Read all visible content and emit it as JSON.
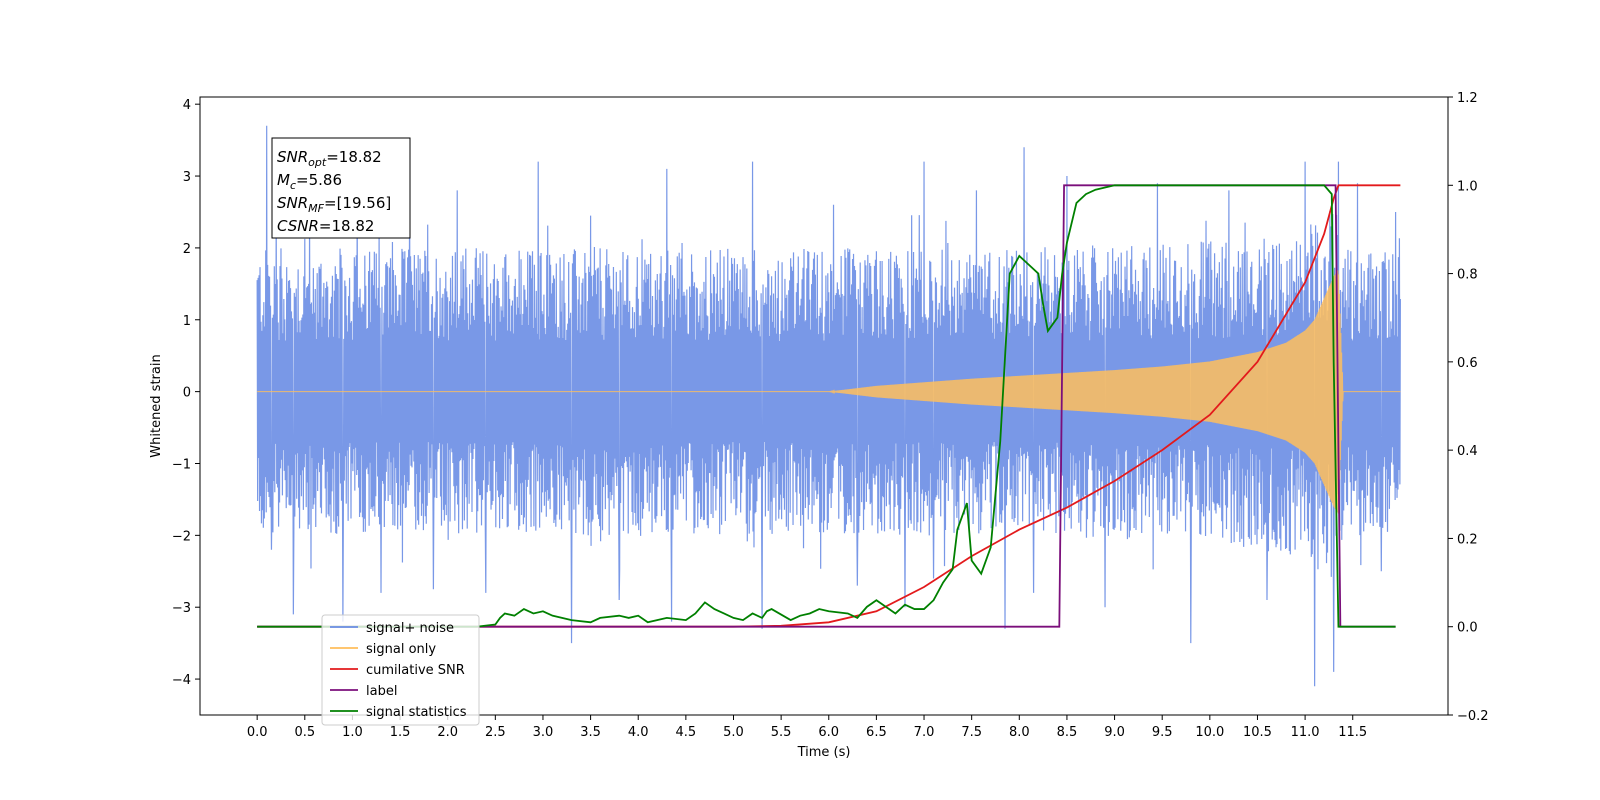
{
  "chart_data": {
    "type": "line",
    "title": "",
    "xlabel": "Time (s)",
    "ylabel": "Whitened strain",
    "xlim": [
      -0.6,
      12.5
    ],
    "ylim": [
      -4.5,
      4.1
    ],
    "y2lim": [
      -0.2,
      1.2
    ],
    "x_ticks": [
      0.0,
      0.5,
      1.0,
      1.5,
      2.0,
      2.5,
      3.0,
      3.5,
      4.0,
      4.5,
      5.0,
      5.5,
      6.0,
      6.5,
      7.0,
      7.5,
      8.0,
      8.5,
      9.0,
      9.5,
      10.0,
      10.5,
      11.0,
      11.5
    ],
    "x_tick_labels": [
      "0.0",
      "0.5",
      "1.0",
      "1.5",
      "2.0",
      "2.5",
      "3.0",
      "3.5",
      "4.0",
      "4.5",
      "5.0",
      "5.5",
      "6.0",
      "6.5",
      "7.0",
      "7.5",
      "8.0",
      "8.5",
      "9.0",
      "9.5",
      "10.0",
      "10.5",
      "11.0",
      "11.5"
    ],
    "y_ticks": [
      -4,
      -3,
      -2,
      -1,
      0,
      1,
      2,
      3,
      4
    ],
    "y_tick_labels": [
      "−4",
      "−3",
      "−2",
      "−1",
      "0",
      "1",
      "2",
      "3",
      "4"
    ],
    "y2_ticks": [
      -0.2,
      0.0,
      0.2,
      0.4,
      0.6,
      0.8,
      1.0,
      1.2
    ],
    "y2_tick_labels": [
      "−0.2",
      "0.0",
      "0.2",
      "0.4",
      "0.6",
      "0.8",
      "1.0",
      "1.2"
    ],
    "grid": false,
    "legend_position": "bottom-left",
    "annotation": {
      "lines": [
        {
          "main": "SNR",
          "sub": "opt",
          "rest": "=18.82"
        },
        {
          "main": "M",
          "sub": "c",
          "rest": "=5.86"
        },
        {
          "main": "SNR",
          "sub": "MF",
          "rest": "=[19.56]"
        },
        {
          "main": "CSNR",
          "sub": "",
          "rest": "=18.82"
        }
      ]
    },
    "series": [
      {
        "name": "signal+ noise",
        "color": "#6a8de4",
        "axis": "left",
        "x_range": [
          0.0,
          12.0
        ],
        "envelope": {
          "x": [
            0.0,
            2.0,
            4.0,
            6.0,
            8.0,
            10.0,
            11.0,
            11.3,
            11.4,
            12.0
          ],
          "upper": [
            2.0,
            2.0,
            2.0,
            2.0,
            2.0,
            2.1,
            2.3,
            2.8,
            2.0,
            2.0
          ],
          "lower": [
            -2.0,
            -2.0,
            -2.0,
            -2.0,
            -2.0,
            -2.1,
            -2.3,
            -2.8,
            -2.0,
            -2.0
          ]
        },
        "peaks": [
          {
            "x": 0.1,
            "y": 3.7
          },
          {
            "x": 0.15,
            "y": -2.2
          },
          {
            "x": 0.2,
            "y": 2.6
          },
          {
            "x": 0.38,
            "y": -3.1
          },
          {
            "x": 0.55,
            "y": 2.45
          },
          {
            "x": 0.9,
            "y": -3.2
          },
          {
            "x": 1.05,
            "y": 2.8
          },
          {
            "x": 1.3,
            "y": -2.8
          },
          {
            "x": 1.6,
            "y": 3.2
          },
          {
            "x": 1.85,
            "y": -2.75
          },
          {
            "x": 2.1,
            "y": 2.8
          },
          {
            "x": 2.4,
            "y": -2.8
          },
          {
            "x": 2.95,
            "y": 3.2
          },
          {
            "x": 3.3,
            "y": -3.5
          },
          {
            "x": 3.5,
            "y": 2.45
          },
          {
            "x": 3.8,
            "y": -2.9
          },
          {
            "x": 4.3,
            "y": 3.1
          },
          {
            "x": 4.35,
            "y": -3.2
          },
          {
            "x": 5.2,
            "y": 3.2
          },
          {
            "x": 5.3,
            "y": -3.3
          },
          {
            "x": 6.05,
            "y": 2.6
          },
          {
            "x": 6.3,
            "y": -2.7
          },
          {
            "x": 6.8,
            "y": -3.0
          },
          {
            "x": 7.0,
            "y": 3.2
          },
          {
            "x": 7.1,
            "y": -2.6
          },
          {
            "x": 7.55,
            "y": 2.8
          },
          {
            "x": 7.85,
            "y": -3.3
          },
          {
            "x": 8.05,
            "y": 3.4
          },
          {
            "x": 8.15,
            "y": -2.8
          },
          {
            "x": 8.5,
            "y": 3.0
          },
          {
            "x": 8.9,
            "y": -3.0
          },
          {
            "x": 9.45,
            "y": 2.9
          },
          {
            "x": 9.8,
            "y": -3.5
          },
          {
            "x": 10.2,
            "y": 2.8
          },
          {
            "x": 10.6,
            "y": -2.9
          },
          {
            "x": 11.0,
            "y": 3.2
          },
          {
            "x": 11.1,
            "y": -4.1
          },
          {
            "x": 11.3,
            "y": -3.9
          },
          {
            "x": 11.35,
            "y": 3.2
          },
          {
            "x": 11.55,
            "y": 2.9
          },
          {
            "x": 11.8,
            "y": -2.5
          },
          {
            "x": 11.95,
            "y": 2.5
          }
        ]
      },
      {
        "name": "signal only",
        "color": "#ffbe5c",
        "axis": "left",
        "envelope": {
          "x": [
            0.0,
            6.0,
            6.5,
            7.0,
            7.5,
            8.0,
            8.5,
            9.0,
            9.5,
            10.0,
            10.5,
            10.8,
            11.0,
            11.1,
            11.2,
            11.3,
            11.35,
            11.4,
            12.0
          ],
          "amplitude": [
            0.0,
            0.0,
            0.08,
            0.13,
            0.18,
            0.22,
            0.26,
            0.3,
            0.35,
            0.42,
            0.55,
            0.68,
            0.85,
            1.0,
            1.3,
            1.6,
            1.7,
            0.0,
            0.0
          ]
        }
      },
      {
        "name": "cumilative SNR",
        "color": "#e31a1c",
        "axis": "right",
        "x": [
          0.0,
          5.0,
          5.5,
          6.0,
          6.5,
          7.0,
          7.5,
          8.0,
          8.5,
          9.0,
          9.5,
          10.0,
          10.5,
          11.0,
          11.2,
          11.3,
          11.35,
          12.0
        ],
        "y": [
          0.0,
          0.0,
          0.002,
          0.01,
          0.035,
          0.09,
          0.16,
          0.22,
          0.27,
          0.33,
          0.4,
          0.48,
          0.6,
          0.78,
          0.89,
          0.97,
          1.0,
          1.0
        ]
      },
      {
        "name": "label",
        "color": "#7b0f7b",
        "axis": "right",
        "x": [
          0.0,
          8.42,
          8.47,
          11.32,
          11.37,
          11.95
        ],
        "y": [
          0.0,
          0.0,
          1.0,
          1.0,
          0.0,
          0.0
        ]
      },
      {
        "name": "signal statistics",
        "color": "#008000",
        "axis": "right",
        "x": [
          0.0,
          2.3,
          2.5,
          2.55,
          2.6,
          2.7,
          2.8,
          2.9,
          3.0,
          3.1,
          3.3,
          3.5,
          3.6,
          3.8,
          3.9,
          4.0,
          4.1,
          4.3,
          4.5,
          4.6,
          4.7,
          4.8,
          4.9,
          5.0,
          5.1,
          5.2,
          5.3,
          5.35,
          5.4,
          5.6,
          5.7,
          5.8,
          5.9,
          6.0,
          6.2,
          6.3,
          6.4,
          6.5,
          6.7,
          6.8,
          6.9,
          7.0,
          7.1,
          7.2,
          7.3,
          7.35,
          7.45,
          7.5,
          7.6,
          7.7,
          7.8,
          7.9,
          8.0,
          8.1,
          8.2,
          8.25,
          8.3,
          8.4,
          8.45,
          8.5,
          8.6,
          8.7,
          8.8,
          9.0,
          9.5,
          10.0,
          10.5,
          11.0,
          11.2,
          11.28,
          11.3,
          11.35,
          11.4,
          11.95
        ],
        "y": [
          0.0,
          0.0,
          0.005,
          0.02,
          0.03,
          0.025,
          0.04,
          0.03,
          0.035,
          0.025,
          0.015,
          0.01,
          0.02,
          0.025,
          0.02,
          0.025,
          0.01,
          0.02,
          0.015,
          0.03,
          0.055,
          0.04,
          0.03,
          0.02,
          0.015,
          0.03,
          0.02,
          0.035,
          0.04,
          0.015,
          0.025,
          0.03,
          0.04,
          0.035,
          0.03,
          0.02,
          0.045,
          0.06,
          0.03,
          0.05,
          0.04,
          0.04,
          0.06,
          0.1,
          0.13,
          0.22,
          0.28,
          0.15,
          0.12,
          0.18,
          0.42,
          0.8,
          0.84,
          0.82,
          0.8,
          0.73,
          0.67,
          0.7,
          0.8,
          0.87,
          0.96,
          0.98,
          0.99,
          1.0,
          1.0,
          1.0,
          1.0,
          1.0,
          1.0,
          0.98,
          0.6,
          0.0,
          0.0,
          0.0
        ]
      }
    ]
  }
}
